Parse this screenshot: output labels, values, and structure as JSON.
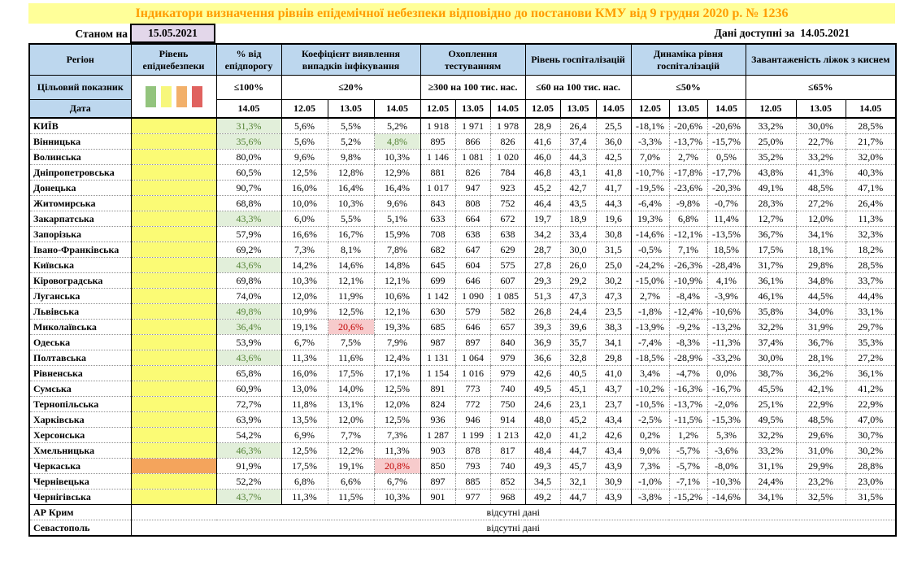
{
  "top": {
    "title": "Індикатори визначення рівнів епідемічної небезпеки відповідно до постанови КМУ від 9 грудня 2020 р. № 1236",
    "as_of_label": "Станом на",
    "as_of_date": "15.05.2021",
    "data_available_label": "Дані доступні за",
    "data_available_date": "14.05.2021"
  },
  "labels": {
    "target": "Цільовий показник",
    "date": "Дата",
    "no_data": "відсутні дані"
  },
  "columns": {
    "region": "Регіон",
    "danger_level": "Рівень епіднебезпеки",
    "pct_threshold": "% від епідпорогу",
    "detection_coef": "Коефіцієнт виявлення випадків інфікування",
    "testing": "Охоплення тестуванням",
    "hosp_level": "Рівень госпіталізацій",
    "hosp_dynamics": "Динаміка рівня госпіталізацій",
    "oxygen_beds": "Завантаженість ліжок з киснем"
  },
  "targets": {
    "pct": "≤100%",
    "coef": "≤20%",
    "testing": "≥300 на 100 тис. нас.",
    "hosp": "≤60 на 100 тис. нас.",
    "dyn": "≤50%",
    "beds": "≤65%"
  },
  "date_columns": [
    "14.05",
    "12.05",
    "13.05",
    "14.05",
    "12.05",
    "13.05",
    "14.05",
    "12.05",
    "13.05",
    "14.05",
    "12.05",
    "13.05",
    "14.05",
    "12.05",
    "13.05",
    "14.05"
  ],
  "danger_legend": [
    {
      "name": "green",
      "color": "#93C47D"
    },
    {
      "name": "yellow",
      "color": "#F7F77C"
    },
    {
      "name": "orange",
      "color": "#F2B06A"
    },
    {
      "name": "red",
      "color": "#E0625F"
    }
  ],
  "colors": {
    "title_bg": "#FFFF99",
    "title_fg": "#FF9D00",
    "header_bg": "#BDD7EE",
    "date_box_bg": "#E3D7EA",
    "lvl_yellow": "#FBFB75",
    "lvl_orange": "#F4A45C",
    "good_bg": "#E2EFDA",
    "good_fg": "#548235",
    "bad_bg": "#F7CBCC",
    "bad_fg": "#C00000"
  },
  "rows": [
    {
      "region": "КИЇВ",
      "level": "yellow",
      "pct": {
        "t": "31,3%",
        "hl": "good"
      },
      "coef": [
        "5,6%",
        "5,5%",
        "5,2%"
      ],
      "test": [
        "1 918",
        "1 971",
        "1 978"
      ],
      "hosp": [
        "28,9",
        "26,4",
        "25,5"
      ],
      "dyn": [
        "-18,1%",
        "-20,6%",
        "-20,6%"
      ],
      "beds": [
        "33,2%",
        "30,0%",
        "28,5%"
      ]
    },
    {
      "region": "Вінницька",
      "level": "yellow",
      "pct": {
        "t": "35,6%",
        "hl": "good"
      },
      "coef": [
        "5,6%",
        "5,2%",
        {
          "t": "4,8%",
          "hl": "good"
        }
      ],
      "test": [
        "895",
        "866",
        "826"
      ],
      "hosp": [
        "41,6",
        "37,4",
        "36,0"
      ],
      "dyn": [
        "-3,3%",
        "-13,7%",
        "-15,7%"
      ],
      "beds": [
        "25,0%",
        "22,7%",
        "21,7%"
      ]
    },
    {
      "region": "Волинська",
      "level": "yellow",
      "pct": "80,0%",
      "coef": [
        "9,6%",
        "9,8%",
        "10,3%"
      ],
      "test": [
        "1 146",
        "1 081",
        "1 020"
      ],
      "hosp": [
        "46,0",
        "44,3",
        "42,5"
      ],
      "dyn": [
        "7,0%",
        "2,7%",
        "0,5%"
      ],
      "beds": [
        "35,2%",
        "33,2%",
        "32,0%"
      ]
    },
    {
      "region": "Дніпропетровська",
      "level": "yellow",
      "pct": "60,5%",
      "coef": [
        "12,5%",
        "12,8%",
        "12,9%"
      ],
      "test": [
        "881",
        "826",
        "784"
      ],
      "hosp": [
        "46,8",
        "43,1",
        "41,8"
      ],
      "dyn": [
        "-10,7%",
        "-17,8%",
        "-17,7%"
      ],
      "beds": [
        "43,8%",
        "41,3%",
        "40,3%"
      ]
    },
    {
      "region": "Донецька",
      "level": "yellow",
      "pct": "90,7%",
      "coef": [
        "16,0%",
        "16,4%",
        "16,4%"
      ],
      "test": [
        "1 017",
        "947",
        "923"
      ],
      "hosp": [
        "45,2",
        "42,7",
        "41,7"
      ],
      "dyn": [
        "-19,5%",
        "-23,6%",
        "-20,3%"
      ],
      "beds": [
        "49,1%",
        "48,5%",
        "47,1%"
      ]
    },
    {
      "region": "Житомирська",
      "level": "yellow",
      "pct": "68,8%",
      "coef": [
        "10,0%",
        "10,3%",
        "9,6%"
      ],
      "test": [
        "843",
        "808",
        "752"
      ],
      "hosp": [
        "46,4",
        "43,5",
        "44,3"
      ],
      "dyn": [
        "-6,4%",
        "-9,8%",
        "-0,7%"
      ],
      "beds": [
        "28,3%",
        "27,2%",
        "26,4%"
      ]
    },
    {
      "region": "Закарпатська",
      "level": "yellow",
      "pct": {
        "t": "43,3%",
        "hl": "good"
      },
      "coef": [
        "6,0%",
        "5,5%",
        "5,1%"
      ],
      "test": [
        "633",
        "664",
        "672"
      ],
      "hosp": [
        "19,7",
        "18,9",
        "19,6"
      ],
      "dyn": [
        "19,3%",
        "6,8%",
        "11,4%"
      ],
      "beds": [
        "12,7%",
        "12,0%",
        "11,3%"
      ]
    },
    {
      "region": "Запорізька",
      "level": "yellow",
      "pct": "57,9%",
      "coef": [
        "16,6%",
        "16,7%",
        "15,9%"
      ],
      "test": [
        "708",
        "638",
        "638"
      ],
      "hosp": [
        "34,2",
        "33,4",
        "30,8"
      ],
      "dyn": [
        "-14,6%",
        "-12,1%",
        "-13,5%"
      ],
      "beds": [
        "36,7%",
        "34,1%",
        "32,3%"
      ]
    },
    {
      "region": "Івано-Франківська",
      "level": "yellow",
      "pct": "69,2%",
      "coef": [
        "7,3%",
        "8,1%",
        "7,8%"
      ],
      "test": [
        "682",
        "647",
        "629"
      ],
      "hosp": [
        "28,7",
        "30,0",
        "31,5"
      ],
      "dyn": [
        "-0,5%",
        "7,1%",
        "18,5%"
      ],
      "beds": [
        "17,5%",
        "18,1%",
        "18,2%"
      ]
    },
    {
      "region": "Київська",
      "level": "yellow",
      "pct": {
        "t": "43,6%",
        "hl": "good"
      },
      "coef": [
        "14,2%",
        "14,6%",
        "14,8%"
      ],
      "test": [
        "645",
        "604",
        "575"
      ],
      "hosp": [
        "27,8",
        "26,0",
        "25,0"
      ],
      "dyn": [
        "-24,2%",
        "-26,3%",
        "-28,4%"
      ],
      "beds": [
        "31,7%",
        "29,8%",
        "28,5%"
      ]
    },
    {
      "region": "Кіровоградська",
      "level": "yellow",
      "pct": "69,8%",
      "coef": [
        "10,3%",
        "12,1%",
        "12,1%"
      ],
      "test": [
        "699",
        "646",
        "607"
      ],
      "hosp": [
        "29,3",
        "29,2",
        "30,2"
      ],
      "dyn": [
        "-15,0%",
        "-10,9%",
        "4,1%"
      ],
      "beds": [
        "36,1%",
        "34,8%",
        "33,7%"
      ]
    },
    {
      "region": "Луганська",
      "level": "yellow",
      "pct": "74,0%",
      "coef": [
        "12,0%",
        "11,9%",
        "10,6%"
      ],
      "test": [
        "1 142",
        "1 090",
        "1 085"
      ],
      "hosp": [
        "51,3",
        "47,3",
        "47,3"
      ],
      "dyn": [
        "2,7%",
        "-8,4%",
        "-3,9%"
      ],
      "beds": [
        "46,1%",
        "44,5%",
        "44,4%"
      ]
    },
    {
      "region": "Львівська",
      "level": "yellow",
      "pct": {
        "t": "49,8%",
        "hl": "good"
      },
      "coef": [
        "10,9%",
        "12,5%",
        "12,1%"
      ],
      "test": [
        "630",
        "579",
        "582"
      ],
      "hosp": [
        "26,8",
        "24,4",
        "23,5"
      ],
      "dyn": [
        "-1,8%",
        "-12,4%",
        "-10,6%"
      ],
      "beds": [
        "35,8%",
        "34,0%",
        "33,1%"
      ]
    },
    {
      "region": "Миколаївська",
      "level": "yellow",
      "pct": {
        "t": "36,4%",
        "hl": "good"
      },
      "coef": [
        "19,1%",
        {
          "t": "20,6%",
          "hl": "bad"
        },
        "19,3%"
      ],
      "test": [
        "685",
        "646",
        "657"
      ],
      "hosp": [
        "39,3",
        "39,6",
        "38,3"
      ],
      "dyn": [
        "-13,9%",
        "-9,2%",
        "-13,2%"
      ],
      "beds": [
        "32,2%",
        "31,9%",
        "29,7%"
      ]
    },
    {
      "region": "Одеська",
      "level": "yellow",
      "pct": "53,9%",
      "coef": [
        "6,7%",
        "7,5%",
        "7,9%"
      ],
      "test": [
        "987",
        "897",
        "840"
      ],
      "hosp": [
        "36,9",
        "35,7",
        "34,1"
      ],
      "dyn": [
        "-7,4%",
        "-8,3%",
        "-11,3%"
      ],
      "beds": [
        "37,4%",
        "36,7%",
        "35,3%"
      ]
    },
    {
      "region": "Полтавська",
      "level": "yellow",
      "pct": {
        "t": "43,6%",
        "hl": "good"
      },
      "coef": [
        "11,3%",
        "11,6%",
        "12,4%"
      ],
      "test": [
        "1 131",
        "1 064",
        "979"
      ],
      "hosp": [
        "36,6",
        "32,8",
        "29,8"
      ],
      "dyn": [
        "-18,5%",
        "-28,9%",
        "-33,2%"
      ],
      "beds": [
        "30,0%",
        "28,1%",
        "27,2%"
      ]
    },
    {
      "region": "Рівненська",
      "level": "yellow",
      "pct": "65,8%",
      "coef": [
        "16,0%",
        "17,5%",
        "17,1%"
      ],
      "test": [
        "1 154",
        "1 016",
        "979"
      ],
      "hosp": [
        "42,6",
        "40,5",
        "41,0"
      ],
      "dyn": [
        "3,4%",
        "-4,7%",
        "0,0%"
      ],
      "beds": [
        "38,7%",
        "36,2%",
        "36,1%"
      ]
    },
    {
      "region": "Сумська",
      "level": "yellow",
      "pct": "60,9%",
      "coef": [
        "13,0%",
        "14,0%",
        "12,5%"
      ],
      "test": [
        "891",
        "773",
        "740"
      ],
      "hosp": [
        "49,5",
        "45,1",
        "43,7"
      ],
      "dyn": [
        "-10,2%",
        "-16,3%",
        "-16,7%"
      ],
      "beds": [
        "45,5%",
        "42,1%",
        "41,2%"
      ]
    },
    {
      "region": "Тернопільська",
      "level": "yellow",
      "pct": "72,7%",
      "coef": [
        "11,8%",
        "13,1%",
        "12,0%"
      ],
      "test": [
        "824",
        "772",
        "750"
      ],
      "hosp": [
        "24,6",
        "23,1",
        "23,7"
      ],
      "dyn": [
        "-10,5%",
        "-13,7%",
        "-2,0%"
      ],
      "beds": [
        "25,1%",
        "22,9%",
        "22,9%"
      ]
    },
    {
      "region": "Харківська",
      "level": "yellow",
      "pct": "63,9%",
      "coef": [
        "13,5%",
        "12,0%",
        "12,5%"
      ],
      "test": [
        "936",
        "946",
        "914"
      ],
      "hosp": [
        "48,0",
        "45,2",
        "43,4"
      ],
      "dyn": [
        "-2,5%",
        "-11,5%",
        "-15,3%"
      ],
      "beds": [
        "49,5%",
        "48,5%",
        "47,0%"
      ]
    },
    {
      "region": "Херсонська",
      "level": "yellow",
      "pct": "54,2%",
      "coef": [
        "6,9%",
        "7,7%",
        "7,3%"
      ],
      "test": [
        "1 287",
        "1 199",
        "1 213"
      ],
      "hosp": [
        "42,0",
        "41,2",
        "42,6"
      ],
      "dyn": [
        "0,2%",
        "1,2%",
        "5,3%"
      ],
      "beds": [
        "32,2%",
        "29,6%",
        "30,7%"
      ]
    },
    {
      "region": "Хмельницька",
      "level": "yellow",
      "pct": {
        "t": "46,3%",
        "hl": "good"
      },
      "coef": [
        "12,5%",
        "12,2%",
        "11,3%"
      ],
      "test": [
        "903",
        "878",
        "817"
      ],
      "hosp": [
        "48,4",
        "44,7",
        "43,4"
      ],
      "dyn": [
        "9,0%",
        "-5,7%",
        "-3,6%"
      ],
      "beds": [
        "33,2%",
        "31,0%",
        "30,2%"
      ]
    },
    {
      "region": "Черкаська",
      "level": "orange",
      "pct": "91,9%",
      "coef": [
        "17,5%",
        "19,1%",
        {
          "t": "20,8%",
          "hl": "bad"
        }
      ],
      "test": [
        "850",
        "793",
        "740"
      ],
      "hosp": [
        "49,3",
        "45,7",
        "43,9"
      ],
      "dyn": [
        "7,3%",
        "-5,7%",
        "-8,0%"
      ],
      "beds": [
        "31,1%",
        "29,9%",
        "28,8%"
      ]
    },
    {
      "region": "Чернівецька",
      "level": "yellow",
      "pct": "52,2%",
      "coef": [
        "6,8%",
        "6,6%",
        "6,7%"
      ],
      "test": [
        "897",
        "885",
        "852"
      ],
      "hosp": [
        "34,5",
        "32,1",
        "30,9"
      ],
      "dyn": [
        "-1,0%",
        "-7,1%",
        "-10,3%"
      ],
      "beds": [
        "24,4%",
        "23,2%",
        "23,0%"
      ]
    },
    {
      "region": "Чернігівська",
      "level": "yellow",
      "pct": {
        "t": "43,7%",
        "hl": "good"
      },
      "coef": [
        "11,3%",
        "11,5%",
        "10,3%"
      ],
      "test": [
        "901",
        "977",
        "968"
      ],
      "hosp": [
        "49,2",
        "44,7",
        "43,9"
      ],
      "dyn": [
        "-3,8%",
        "-15,2%",
        "-14,6%"
      ],
      "beds": [
        "34,1%",
        "32,5%",
        "31,5%"
      ]
    },
    {
      "region": "АР Крим",
      "no_data": true
    },
    {
      "region": "Севастополь",
      "no_data": true
    }
  ]
}
